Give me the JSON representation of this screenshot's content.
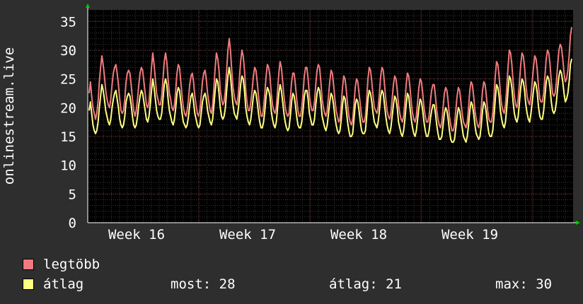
{
  "colors": {
    "background": "#2e2e2e",
    "plot_bg": "#000000",
    "grid_minor": "#3a3a3a",
    "grid_major": "#6a2a2a",
    "axis": "#ffffff",
    "arrow": "#00cc00",
    "series_max": "#f07a7e",
    "series_avg": "#ffff80"
  },
  "chart_data": {
    "type": "line",
    "ylabel": "onlinestream.live",
    "ylim": [
      0,
      37
    ],
    "y_ticks": [
      0,
      5,
      10,
      15,
      20,
      25,
      30,
      35
    ],
    "x_tick_labels": [
      "Week 16",
      "Week 17",
      "Week 18",
      "Week 19"
    ],
    "grid": true,
    "legend_placement": "bottom-left",
    "series": [
      {
        "name": "legtöbb",
        "color": "#f07a7e",
        "values": [
          22.5,
          24.5,
          22,
          20,
          19,
          18,
          19,
          21,
          24.5,
          27,
          29,
          27.5,
          25.5,
          23,
          21.5,
          20.5,
          20,
          21.5,
          24,
          26,
          27,
          27.5,
          26,
          24,
          21.5,
          19.5,
          19,
          19.5,
          21.5,
          24.5,
          26,
          26.5,
          26,
          24,
          21.5,
          19.5,
          18.5,
          19.5,
          21.5,
          24,
          26,
          27,
          26.5,
          24.5,
          22.5,
          20.5,
          20,
          21,
          24,
          27,
          29.5,
          27.5,
          25,
          22.5,
          21.5,
          20.5,
          20.5,
          22,
          25,
          28,
          29.5,
          28,
          25,
          22.5,
          21.5,
          20,
          19.5,
          20.5,
          23,
          26,
          27.5,
          27,
          24.5,
          22,
          20,
          19,
          18.5,
          19.5,
          21.5,
          24,
          25.5,
          26,
          24.5,
          22,
          20.5,
          19,
          18.5,
          19.5,
          22,
          24.5,
          26,
          26.5,
          25,
          22.5,
          21,
          19.5,
          19,
          20.5,
          23.5,
          27,
          29.5,
          28.5,
          26.5,
          23,
          21.5,
          20.5,
          21,
          23,
          26.5,
          30,
          32,
          30,
          26.5,
          23.5,
          22,
          21,
          20.5,
          22,
          25,
          28,
          30,
          29,
          26.5,
          23,
          21,
          19.5,
          19.5,
          21,
          23,
          25.5,
          27,
          26.5,
          24.5,
          22,
          20,
          18.5,
          18.5,
          20,
          22.5,
          25.5,
          27.5,
          27,
          25.5,
          22.5,
          20.5,
          19.5,
          19,
          20,
          23,
          26,
          28,
          27,
          24.5,
          22,
          20,
          19,
          18.5,
          19,
          21.5,
          24.5,
          26,
          26,
          24,
          21.5,
          19.5,
          18.5,
          18.5,
          20,
          22.5,
          25.5,
          27,
          27,
          25,
          22,
          20.5,
          19.5,
          19.5,
          21,
          24,
          26.5,
          27.5,
          27,
          24.5,
          21.5,
          20,
          19,
          18.5,
          19.5,
          22,
          24.5,
          26.5,
          26,
          24,
          21.5,
          19.5,
          18.5,
          17.5,
          18,
          20.5,
          23.5,
          25.5,
          25,
          23,
          20.5,
          18.5,
          17.5,
          17,
          18,
          20.5,
          23.5,
          25,
          24.5,
          22.5,
          20.5,
          18.5,
          17.5,
          17.5,
          18.5,
          21.5,
          25,
          27,
          26.5,
          24.5,
          22,
          20,
          19.5,
          19,
          20,
          22.5,
          25.5,
          27,
          26.5,
          24,
          21.5,
          19.5,
          18.5,
          18,
          19,
          21.5,
          24,
          25.5,
          25,
          23,
          20.5,
          19,
          18,
          17.5,
          18.5,
          21,
          24,
          26,
          25.5,
          23.5,
          21,
          19,
          18,
          17.5,
          18.5,
          21,
          23.5,
          25,
          24.5,
          22.5,
          20,
          18.5,
          17.5,
          17.5,
          18.5,
          21,
          23,
          24,
          24,
          22,
          19.5,
          18,
          17,
          16.5,
          17.5,
          20,
          22.5,
          23.5,
          23,
          21,
          18.5,
          17,
          16,
          16,
          17,
          19.5,
          22,
          23.5,
          23,
          21,
          19,
          17.5,
          17,
          16.5,
          17.5,
          20,
          23,
          24.5,
          24,
          22,
          19.5,
          18,
          17,
          16.5,
          17.5,
          20,
          23,
          24.5,
          24,
          22,
          19.5,
          18,
          17.5,
          17.5,
          19,
          22,
          25.5,
          28,
          27.5,
          25.5,
          22.5,
          20.5,
          19.5,
          19,
          20.5,
          23.5,
          27,
          30,
          29.5,
          27.5,
          24.5,
          22,
          20.5,
          20,
          21.5,
          24.5,
          27.5,
          29.5,
          29,
          27,
          24,
          22,
          21,
          20.5,
          22,
          24.5,
          27,
          29,
          28.5,
          26.5,
          23.5,
          21.5,
          21,
          21,
          22.5,
          25.5,
          28.5,
          30,
          29.5,
          27.5,
          24.5,
          22.5,
          22,
          22.5,
          24.5,
          27.5,
          30,
          31,
          30.5,
          28.5,
          26,
          24.5,
          25,
          26.5,
          29,
          32.5,
          34
        ]
      },
      {
        "name": "átlag",
        "color": "#ffff80",
        "values": [
          19.5,
          21,
          19,
          17,
          16,
          15.5,
          16,
          17.5,
          20,
          22,
          24,
          23,
          21.5,
          19.5,
          18.5,
          17.5,
          17,
          18,
          20,
          21.5,
          22.5,
          23,
          21.5,
          20,
          18,
          17,
          16.5,
          17,
          18.5,
          21,
          22,
          22.5,
          22,
          20.5,
          18.5,
          17,
          16.5,
          17,
          18.5,
          20.5,
          22,
          23,
          22.5,
          21,
          19.5,
          18,
          17.5,
          18.5,
          20.5,
          23,
          25,
          23.5,
          21.5,
          19.5,
          18.5,
          18,
          18,
          19,
          21.5,
          24,
          25,
          24,
          21.5,
          19.5,
          18.5,
          17.5,
          17,
          18,
          20,
          22.5,
          23.5,
          23,
          21,
          19,
          17.5,
          17,
          16.5,
          17,
          18.5,
          20.5,
          22,
          22.5,
          21,
          19,
          18,
          17,
          16.5,
          17,
          19,
          21,
          22,
          22.5,
          21.5,
          19.5,
          18.5,
          17.5,
          17,
          18,
          20.5,
          23,
          25,
          24.5,
          22.5,
          20,
          18.5,
          18,
          18.5,
          20,
          23,
          25.5,
          27,
          25.5,
          23,
          20.5,
          19,
          18.5,
          18,
          19.5,
          21.5,
          24,
          25.5,
          25,
          23,
          20,
          18.5,
          17.5,
          17,
          18,
          20,
          22,
          23,
          22.5,
          21,
          19,
          17.5,
          16.5,
          16.5,
          17.5,
          19.5,
          22,
          23.5,
          23,
          22,
          19.5,
          18,
          17,
          16.5,
          17.5,
          20,
          22.5,
          24,
          23,
          21,
          19,
          17.5,
          16.5,
          16,
          16.5,
          18.5,
          21,
          22.5,
          22,
          20.5,
          18.5,
          17,
          16.5,
          16.5,
          17.5,
          19.5,
          22,
          23,
          23,
          21.5,
          19,
          18,
          17,
          17,
          18,
          20.5,
          22.5,
          23.5,
          23,
          21,
          18.5,
          17.5,
          16.5,
          16,
          17,
          19,
          21,
          22.5,
          22,
          20.5,
          18.5,
          17,
          16,
          15.5,
          16,
          18,
          20.5,
          22,
          21.5,
          19.5,
          17.5,
          16,
          15,
          15,
          15.5,
          18,
          20.5,
          21.5,
          21,
          19.5,
          17.5,
          16,
          15.5,
          15.5,
          16,
          18.5,
          21.5,
          23,
          22.5,
          21,
          19,
          17.5,
          17,
          16.5,
          17.5,
          19.5,
          22,
          23,
          22.5,
          20.5,
          18.5,
          17,
          16,
          15.5,
          16.5,
          18.5,
          20.5,
          22,
          21.5,
          20,
          17.5,
          16.5,
          15.5,
          15,
          16,
          18,
          20.5,
          22.5,
          22,
          20,
          18,
          16.5,
          15.5,
          15,
          16,
          18,
          20,
          21.5,
          21,
          19.5,
          17.5,
          16,
          15,
          15,
          16,
          18,
          19.5,
          20.5,
          20.5,
          19,
          17,
          15.5,
          14.5,
          14.5,
          15,
          17,
          19,
          20,
          19.5,
          18,
          16,
          14.5,
          14,
          14,
          14.5,
          16.5,
          18.5,
          20,
          19.5,
          18,
          16.5,
          15,
          14.5,
          14,
          15,
          17,
          19.5,
          21,
          20.5,
          19,
          17,
          15.5,
          15,
          14.5,
          15,
          17,
          19.5,
          21,
          20.5,
          19,
          17,
          15.5,
          15,
          15,
          16,
          18.5,
          21.5,
          24,
          23.5,
          22,
          19.5,
          18,
          17,
          16.5,
          17.5,
          20,
          23,
          25.5,
          25,
          23.5,
          21,
          19,
          18,
          17.5,
          18.5,
          21,
          23.5,
          25,
          24.5,
          23,
          20.5,
          19,
          18,
          17.5,
          19,
          21,
          23,
          24.5,
          24,
          22.5,
          20,
          18.5,
          18,
          18,
          19.5,
          22,
          24.5,
          25.5,
          25,
          23.5,
          21,
          19.5,
          19,
          19.5,
          21,
          23.5,
          25.5,
          26.5,
          26,
          24.5,
          22.5,
          21,
          21.5,
          22.5,
          24.5,
          27.5,
          28.5
        ]
      }
    ]
  },
  "legend": [
    {
      "label": "legtöbb",
      "color": "#f07a7e"
    },
    {
      "label": "átlag",
      "color": "#ffff80"
    }
  ],
  "stats": {
    "now_label": "most:",
    "now_value": "28",
    "avg_label": "átlag:",
    "avg_value": "21",
    "max_label": "max:",
    "max_value": "30"
  }
}
